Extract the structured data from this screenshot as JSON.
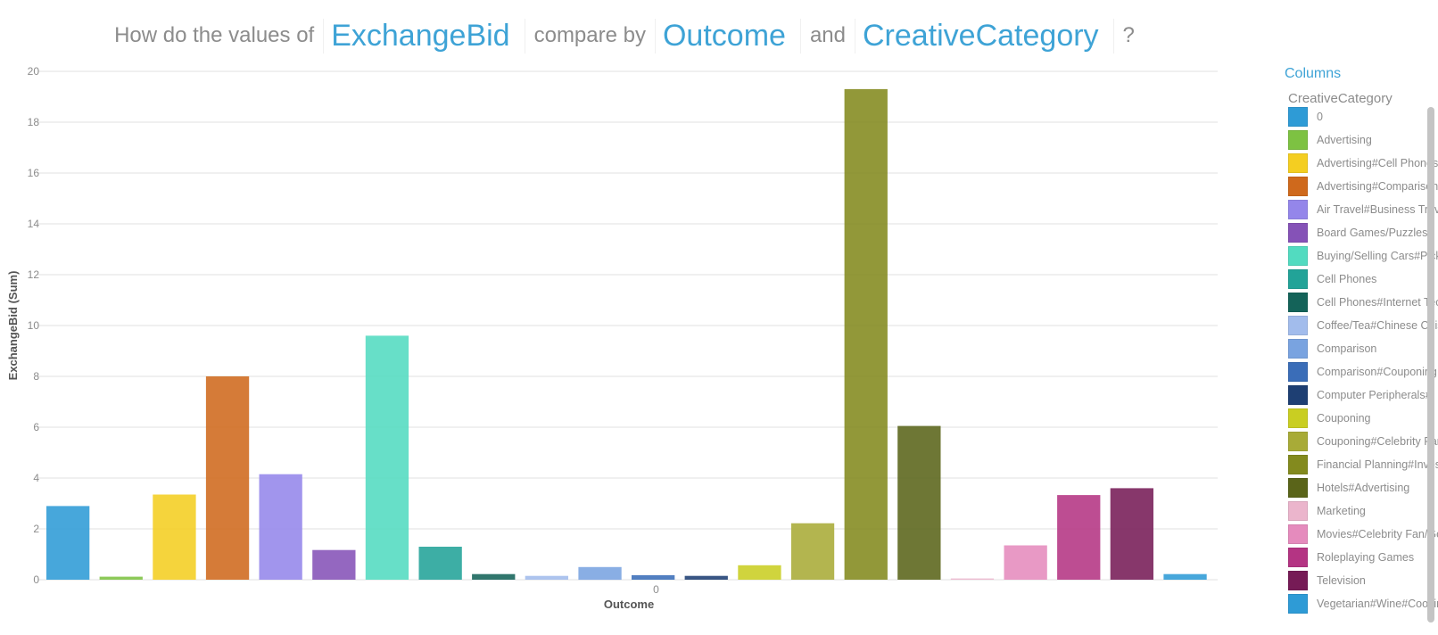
{
  "question": {
    "prefix": "How do the values of",
    "measure": "ExchangeBid",
    "middle": "compare by",
    "dimension1": "Outcome",
    "conjunction": "and",
    "dimension2": "CreativeCategory",
    "suffix": "?"
  },
  "legend": {
    "title": "Columns",
    "subtitle": "CreativeCategory",
    "items": [
      {
        "label": "0",
        "color": "#2e9bd6"
      },
      {
        "label": "Advertising",
        "color": "#7dc242"
      },
      {
        "label": "Advertising#Cell Phones",
        "color": "#f4ce21"
      },
      {
        "label": "Advertising#Comparison",
        "color": "#cf691c"
      },
      {
        "label": "Air Travel#Business Travel",
        "color": "#9486ea"
      },
      {
        "label": "Board Games/Puzzles",
        "color": "#8552b7"
      },
      {
        "label": "Buying/Selling Cars#Pickup",
        "color": "#52dbc0"
      },
      {
        "label": "Cell Phones",
        "color": "#22a398"
      },
      {
        "label": "Cell Phones#Internet Tech",
        "color": "#146359"
      },
      {
        "label": "Coffee/Tea#Chinese Cuisine",
        "color": "#a2bcec"
      },
      {
        "label": "Comparison",
        "color": "#79a3e0"
      },
      {
        "label": "Comparison#Couponing",
        "color": "#3a6db8"
      },
      {
        "label": "Computer Peripherals#",
        "color": "#1e3f73"
      },
      {
        "label": "Couponing",
        "color": "#c9ce22"
      },
      {
        "label": "Couponing#Celebrity Fan",
        "color": "#a8ab37"
      },
      {
        "label": "Financial Planning#Investing",
        "color": "#838a1e"
      },
      {
        "label": "Hotels#Advertising",
        "color": "#5a6419"
      },
      {
        "label": "Marketing",
        "color": "#ebb5cc"
      },
      {
        "label": "Movies#Celebrity Fan/Gossip",
        "color": "#e58bbd"
      },
      {
        "label": "Roleplaying Games",
        "color": "#b43483"
      },
      {
        "label": "Television",
        "color": "#761b56"
      },
      {
        "label": "Vegetarian#Wine#Cooking",
        "color": "#2e9bd6"
      }
    ]
  },
  "chart_data": {
    "type": "bar",
    "title": "",
    "xlabel": "Outcome",
    "ylabel": "ExchangeBid (Sum)",
    "x_categories": [
      "0"
    ],
    "ylim": [
      0,
      20
    ],
    "yticks": [
      0,
      2,
      4,
      6,
      8,
      10,
      12,
      14,
      16,
      18,
      20
    ],
    "grid": true,
    "legend_position": "right",
    "series": [
      {
        "name": "0",
        "value": 2.9
      },
      {
        "name": "Advertising",
        "value": 0.12
      },
      {
        "name": "Advertising#Cell Phones",
        "value": 3.35
      },
      {
        "name": "Advertising#Comparison",
        "value": 8.0
      },
      {
        "name": "Air Travel#Business Travel",
        "value": 4.15
      },
      {
        "name": "Board Games/Puzzles",
        "value": 1.17
      },
      {
        "name": "Buying/Selling Cars#Pickup",
        "value": 9.6
      },
      {
        "name": "Cell Phones",
        "value": 1.3
      },
      {
        "name": "Cell Phones#Internet Tech",
        "value": 0.22
      },
      {
        "name": "Coffee/Tea#Chinese Cuisine",
        "value": 0.15
      },
      {
        "name": "Comparison",
        "value": 0.5
      },
      {
        "name": "Comparison#Couponing",
        "value": 0.18
      },
      {
        "name": "Computer Peripherals#",
        "value": 0.15
      },
      {
        "name": "Couponing",
        "value": 0.57
      },
      {
        "name": "Couponing#Celebrity Fan",
        "value": 2.22
      },
      {
        "name": "Financial Planning#Investing",
        "value": 19.3
      },
      {
        "name": "Hotels#Advertising",
        "value": 6.05
      },
      {
        "name": "Marketing",
        "value": 0.05
      },
      {
        "name": "Movies#Celebrity Fan/Gossip",
        "value": 1.35
      },
      {
        "name": "Roleplaying Games",
        "value": 3.33
      },
      {
        "name": "Television",
        "value": 3.6
      },
      {
        "name": "Vegetarian#Wine#Cooking",
        "value": 0.22
      }
    ]
  }
}
